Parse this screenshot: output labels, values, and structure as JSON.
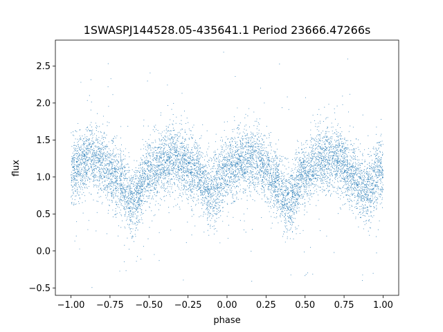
{
  "chart_data": {
    "type": "scatter",
    "title": "1SWASPJ144528.05-435641.1 Period 23666.47266s",
    "xlabel": "phase",
    "ylabel": "flux",
    "xlim": [
      -1.1,
      1.1
    ],
    "ylim": [
      -0.6,
      2.85
    ],
    "xticks": [
      -1.0,
      -0.75,
      -0.5,
      -0.25,
      0.0,
      0.25,
      0.5,
      0.75,
      1.0
    ],
    "xtick_labels": [
      "−1.00",
      "−0.75",
      "−0.50",
      "−0.25",
      "0.00",
      "0.25",
      "0.50",
      "0.75",
      "1.00"
    ],
    "yticks": [
      -0.5,
      0.0,
      0.5,
      1.0,
      1.5,
      2.0,
      2.5
    ],
    "ytick_labels": [
      "−0.5",
      "0.0",
      "0.5",
      "1.0",
      "1.5",
      "2.0",
      "2.5"
    ],
    "grid": false,
    "marker_color": "#1f77b4",
    "phase_range": [
      -1.0,
      1.0
    ],
    "trend": {
      "x": [
        -1.0,
        -0.9,
        -0.8,
        -0.7,
        -0.6,
        -0.5,
        -0.4,
        -0.3,
        -0.2,
        -0.1,
        0.0,
        0.1,
        0.2,
        0.3,
        0.4,
        0.5,
        0.6,
        0.7,
        0.8,
        0.9,
        1.0
      ],
      "y": [
        1.1,
        1.22,
        1.22,
        0.95,
        0.68,
        1.05,
        1.22,
        1.25,
        1.05,
        0.8,
        1.1,
        1.22,
        1.22,
        0.95,
        0.68,
        1.05,
        1.22,
        1.25,
        1.05,
        0.8,
        1.1
      ]
    },
    "scatter_sigma": 0.22,
    "n_points": 9000
  }
}
